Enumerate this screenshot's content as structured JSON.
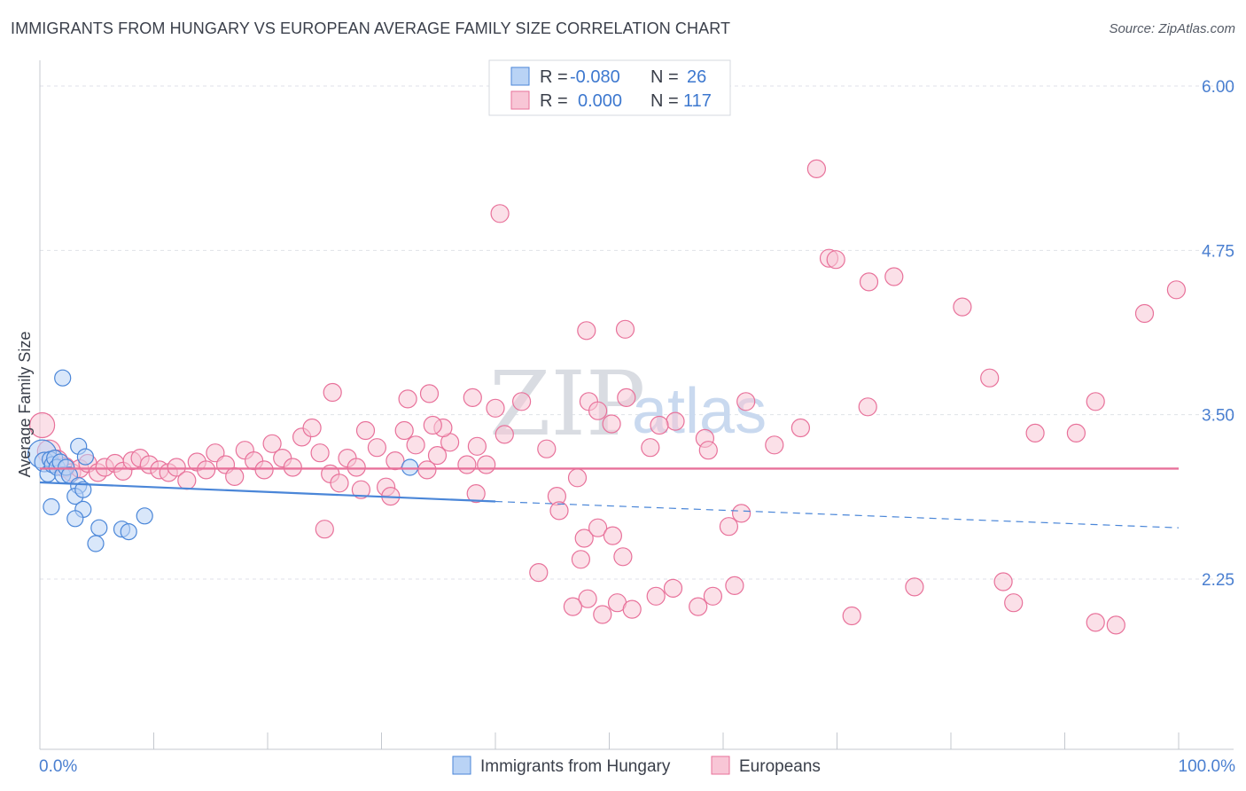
{
  "header": {
    "title": "IMMIGRANTS FROM HUNGARY VS EUROPEAN AVERAGE FAMILY SIZE CORRELATION CHART",
    "source": "Source: ZipAtlas.com"
  },
  "watermark": {
    "part1": "ZIP",
    "part2": "atlas"
  },
  "colors": {
    "blue": "#4a86d8",
    "blue_fill": "#b9d3f5",
    "pink": "#e8719a",
    "pink_fill": "#f8c6d6",
    "axis_label": "#4a7fd0",
    "grid": "#dfe2e8"
  },
  "legend": {
    "rows": [
      {
        "r_label": "R =",
        "r_value": "-0.080",
        "n_label": "N =",
        "n_value": "26"
      },
      {
        "r_label": "R =",
        "r_value": "0.000",
        "n_label": "N =",
        "n_value": "117"
      }
    ]
  },
  "bottom_legend": {
    "series1": "Immigrants from Hungary",
    "series2": "Europeans"
  },
  "chart_data": {
    "type": "scatter",
    "title": "IMMIGRANTS FROM HUNGARY VS EUROPEAN AVERAGE FAMILY SIZE CORRELATION CHART",
    "xlabel": "",
    "ylabel": "Average Family Size",
    "xlim": [
      0,
      100
    ],
    "ylim": [
      1.25,
      6.1
    ],
    "x_tick_labels": [
      "0.0%",
      "100.0%"
    ],
    "y_ticks": [
      {
        "value": 2.25,
        "label": "2.25"
      },
      {
        "value": 3.5,
        "label": "3.50"
      },
      {
        "value": 4.75,
        "label": "4.75"
      },
      {
        "value": 6.0,
        "label": "6.00"
      }
    ],
    "series": [
      {
        "name": "Immigrants from Hungary",
        "color": "#4a86d8",
        "R": -0.08,
        "N": 26,
        "trend": {
          "x0": 0,
          "y0": 2.985,
          "x1": 40,
          "y1": 2.84,
          "dash_to_x": 100,
          "dash_to_y": 2.64
        },
        "points": [
          [
            0.2,
            3.2,
            16
          ],
          [
            0.4,
            3.14,
            11
          ],
          [
            0.7,
            3.05,
            9
          ],
          [
            0.9,
            3.16,
            9
          ],
          [
            1.1,
            3.12,
            9
          ],
          [
            1.3,
            3.17,
            9
          ],
          [
            1.5,
            3.1,
            9
          ],
          [
            1.8,
            3.14,
            9
          ],
          [
            2.0,
            3.04,
            9
          ],
          [
            2.3,
            3.1,
            9
          ],
          [
            2.6,
            3.04,
            9
          ],
          [
            2.0,
            3.78,
            9
          ],
          [
            3.4,
            3.26,
            9
          ],
          [
            3.4,
            2.96,
            9
          ],
          [
            3.1,
            2.88,
            9
          ],
          [
            3.8,
            2.93,
            9
          ],
          [
            3.8,
            2.78,
            9
          ],
          [
            3.1,
            2.71,
            9
          ],
          [
            1.0,
            2.8,
            9
          ],
          [
            4.0,
            3.18,
            9
          ],
          [
            5.2,
            2.64,
            9
          ],
          [
            7.2,
            2.63,
            9
          ],
          [
            9.2,
            2.73,
            9
          ],
          [
            7.8,
            2.61,
            9
          ],
          [
            4.9,
            2.52,
            9
          ],
          [
            32.5,
            3.1,
            9
          ]
        ]
      },
      {
        "name": "Europeans",
        "color": "#e8719a",
        "R": 0.0,
        "N": 117,
        "trend": {
          "x0": 0,
          "y0": 3.09,
          "x1": 100,
          "y1": 3.09
        },
        "points": [
          [
            0.2,
            3.42,
            14
          ],
          [
            0.8,
            3.22,
            13
          ],
          [
            1.5,
            3.15,
            12
          ],
          [
            2.2,
            3.1,
            11
          ],
          [
            2.8,
            3.06,
            10
          ],
          [
            3.5,
            3.09,
            10
          ],
          [
            4.2,
            3.13,
            10
          ],
          [
            5.1,
            3.06,
            10
          ],
          [
            5.7,
            3.1,
            10
          ],
          [
            6.6,
            3.13,
            10
          ],
          [
            7.3,
            3.07,
            10
          ],
          [
            8.1,
            3.15,
            10
          ],
          [
            8.8,
            3.17,
            10
          ],
          [
            9.6,
            3.12,
            10
          ],
          [
            10.5,
            3.08,
            10
          ],
          [
            11.3,
            3.06,
            10
          ],
          [
            12.0,
            3.1,
            10
          ],
          [
            12.9,
            3.0,
            10
          ],
          [
            13.8,
            3.14,
            10
          ],
          [
            14.6,
            3.08,
            10
          ],
          [
            15.4,
            3.21,
            10
          ],
          [
            16.3,
            3.12,
            10
          ],
          [
            17.1,
            3.03,
            10
          ],
          [
            18.0,
            3.23,
            10
          ],
          [
            18.8,
            3.15,
            10
          ],
          [
            19.7,
            3.08,
            10
          ],
          [
            20.4,
            3.28,
            10
          ],
          [
            21.3,
            3.17,
            10
          ],
          [
            22.2,
            3.1,
            10
          ],
          [
            23.0,
            3.33,
            10
          ],
          [
            23.9,
            3.4,
            10
          ],
          [
            24.6,
            3.21,
            10
          ],
          [
            25.5,
            3.05,
            10
          ],
          [
            26.3,
            2.98,
            10
          ],
          [
            27.0,
            3.17,
            10
          ],
          [
            27.8,
            3.1,
            10
          ],
          [
            28.6,
            3.38,
            10
          ],
          [
            29.6,
            3.25,
            10
          ],
          [
            30.4,
            2.95,
            10
          ],
          [
            31.2,
            3.15,
            10
          ],
          [
            32.0,
            3.38,
            10
          ],
          [
            33.0,
            3.27,
            10
          ],
          [
            34.0,
            3.08,
            10
          ],
          [
            34.9,
            3.19,
            10
          ],
          [
            36.0,
            3.29,
            10
          ],
          [
            37.5,
            3.12,
            10
          ],
          [
            38.4,
            3.26,
            10
          ],
          [
            39.2,
            3.12,
            10
          ],
          [
            40.0,
            3.55,
            10
          ],
          [
            40.8,
            3.35,
            10
          ],
          [
            25.7,
            3.67,
            10
          ],
          [
            32.3,
            3.62,
            10
          ],
          [
            34.2,
            3.66,
            10
          ],
          [
            38.0,
            3.63,
            10
          ],
          [
            42.3,
            3.6,
            10
          ],
          [
            44.5,
            3.24,
            10
          ],
          [
            45.4,
            2.88,
            10
          ],
          [
            47.2,
            3.02,
            10
          ],
          [
            48.0,
            4.14,
            10
          ],
          [
            48.2,
            3.6,
            10
          ],
          [
            49.0,
            3.53,
            10
          ],
          [
            50.2,
            3.43,
            10
          ],
          [
            51.5,
            3.63,
            10
          ],
          [
            53.6,
            3.25,
            10
          ],
          [
            55.8,
            3.45,
            10
          ],
          [
            35.4,
            3.4,
            10
          ],
          [
            38.3,
            2.9,
            10
          ],
          [
            25.0,
            2.63,
            10
          ],
          [
            28.2,
            2.93,
            10
          ],
          [
            30.8,
            2.88,
            10
          ],
          [
            34.5,
            3.42,
            10
          ],
          [
            40.4,
            5.03,
            10
          ],
          [
            51.4,
            4.15,
            10
          ],
          [
            58.4,
            3.32,
            10
          ],
          [
            68.2,
            5.37,
            10
          ],
          [
            69.3,
            4.69,
            10
          ],
          [
            69.9,
            4.68,
            10
          ],
          [
            72.8,
            4.51,
            10
          ],
          [
            75.0,
            4.55,
            10
          ],
          [
            81.0,
            4.32,
            10
          ],
          [
            87.4,
            3.36,
            10
          ],
          [
            91.0,
            3.36,
            10
          ],
          [
            92.7,
            3.6,
            10
          ],
          [
            97.0,
            4.27,
            10
          ],
          [
            99.8,
            4.45,
            10
          ],
          [
            83.4,
            3.78,
            10
          ],
          [
            72.7,
            3.56,
            10
          ],
          [
            66.8,
            3.4,
            10
          ],
          [
            64.5,
            3.27,
            10
          ],
          [
            62.0,
            3.6,
            10
          ],
          [
            58.7,
            3.23,
            10
          ],
          [
            54.4,
            3.42,
            10
          ],
          [
            45.6,
            2.77,
            10
          ],
          [
            47.8,
            2.56,
            10
          ],
          [
            49.0,
            2.64,
            10
          ],
          [
            50.3,
            2.58,
            10
          ],
          [
            43.8,
            2.3,
            10
          ],
          [
            47.5,
            2.4,
            10
          ],
          [
            51.2,
            2.42,
            10
          ],
          [
            48.1,
            2.1,
            10
          ],
          [
            49.4,
            1.98,
            10
          ],
          [
            50.7,
            2.07,
            10
          ],
          [
            52.0,
            2.02,
            10
          ],
          [
            54.1,
            2.12,
            10
          ],
          [
            55.6,
            2.18,
            10
          ],
          [
            57.8,
            2.04,
            10
          ],
          [
            59.1,
            2.12,
            10
          ],
          [
            61.0,
            2.2,
            10
          ],
          [
            61.6,
            2.75,
            10
          ],
          [
            60.5,
            2.65,
            10
          ],
          [
            71.3,
            1.97,
            10
          ],
          [
            76.8,
            2.19,
            10
          ],
          [
            84.6,
            2.23,
            10
          ],
          [
            85.5,
            2.07,
            10
          ],
          [
            92.7,
            1.92,
            10
          ],
          [
            94.5,
            1.9,
            10
          ],
          [
            46.8,
            2.04,
            10
          ]
        ]
      }
    ]
  }
}
